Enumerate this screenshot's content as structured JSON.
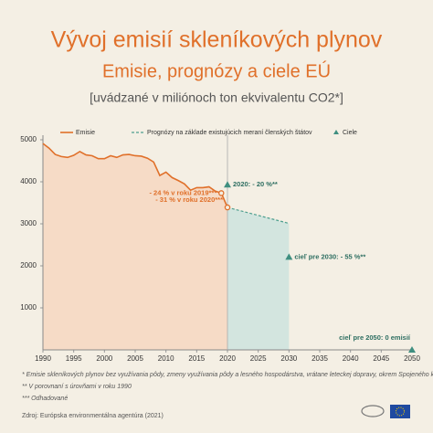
{
  "chart_data": {
    "type": "line",
    "title": "Vývoj emisií skleníkových plynov",
    "subtitle": "Emisie, prognózy a ciele EÚ",
    "unit_note": "[uvádzané v miliónoch ton ekvivalentu CO2*]",
    "xlim": [
      1990,
      2050
    ],
    "xticks": [
      1990,
      1995,
      2000,
      2005,
      2010,
      2015,
      2020,
      2025,
      2030,
      2035,
      2040,
      2045,
      2050
    ],
    "ylim": [
      0,
      5000
    ],
    "yticks": [
      1000,
      2000,
      3000,
      4000,
      5000
    ],
    "series": [
      {
        "name": "Emisie",
        "color": "#e0702a",
        "kind": "line",
        "x": [
          1990,
          1991,
          1992,
          1993,
          1994,
          1995,
          1996,
          1997,
          1998,
          1999,
          2000,
          2001,
          2002,
          2003,
          2004,
          2005,
          2006,
          2007,
          2008,
          2009,
          2010,
          2011,
          2012,
          2013,
          2014,
          2015,
          2016,
          2017,
          2018,
          2019,
          2020
        ],
        "values": [
          4910,
          4800,
          4650,
          4600,
          4580,
          4630,
          4720,
          4640,
          4620,
          4550,
          4550,
          4620,
          4580,
          4640,
          4650,
          4620,
          4610,
          4560,
          4470,
          4150,
          4230,
          4100,
          4030,
          3950,
          3800,
          3860,
          3860,
          3880,
          3780,
          3730,
          3390
        ]
      },
      {
        "name": "Prognózy na základe existujúcich meraní členských štátov",
        "color": "#4f9f8f",
        "kind": "dashed",
        "x": [
          2020,
          2030
        ],
        "values": [
          3390,
          3010
        ]
      },
      {
        "name": "Ciele",
        "color": "#3f8f80",
        "kind": "triangle",
        "x": [
          2020,
          2030,
          2050
        ],
        "values": [
          3930,
          2210,
          0
        ],
        "value_labels": [
          "2020: - 20 %**",
          "cieľ pre 2030: - 55 %**",
          "cieľ pre 2050: 0 emisií"
        ]
      }
    ],
    "annotations": [
      "- 24 % v roku 2019***",
      "- 31 % v roku 2020***"
    ],
    "footnotes": [
      "* Emisie skleníkových plynov bez využívania pôdy, zmeny využívania pôdy a lesného hospodárstva, vrátane leteckej dopravy, okrem Spojeného kráľovstva",
      "** V porovnaní s úrovňami v roku 1990",
      "*** Odhadované"
    ],
    "source": "Zdroj: Európska environmentálna agentúra (2021)"
  }
}
